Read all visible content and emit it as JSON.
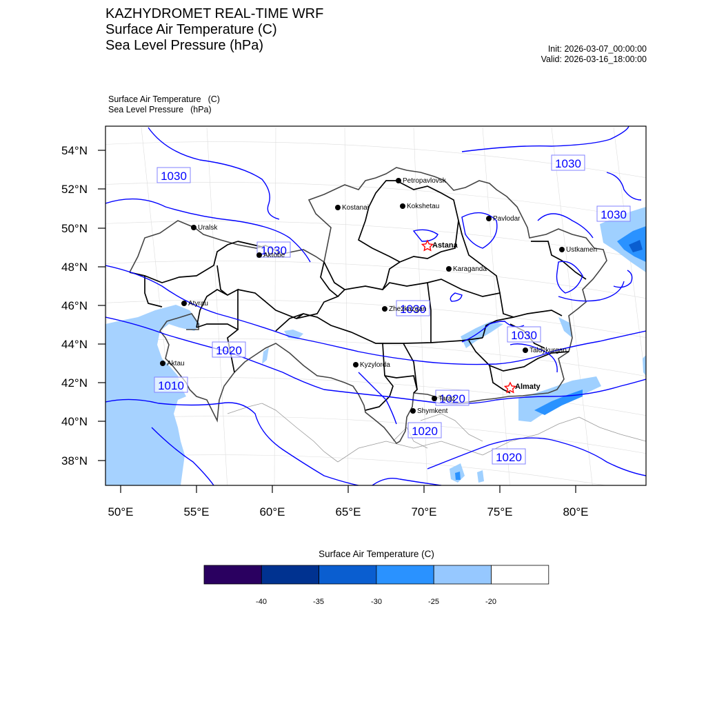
{
  "title": {
    "line1": "KAZHYDROMET REAL-TIME WRF",
    "line2": "Surface Air Temperature  (C)",
    "line3": "Sea Level Pressure  (hPa)"
  },
  "run": {
    "init": "Init: 2026-03-07_00:00:00",
    "valid": "Valid: 2026-03-16_18:00:00"
  },
  "subtitle": {
    "var1": "Surface Air Temperature",
    "unit1": "(C)",
    "var2": "Sea Level Pressure",
    "unit2": "(hPa)"
  },
  "map": {
    "lat_labels": [
      "54°N",
      "52°N",
      "50°N",
      "48°N",
      "46°N",
      "44°N",
      "42°N",
      "40°N",
      "38°N"
    ],
    "lon_labels": [
      "50°E",
      "55°E",
      "60°E",
      "65°E",
      "70°E",
      "75°E",
      "80°E"
    ],
    "cities": [
      {
        "name": "Petropavlovsk"
      },
      {
        "name": "Kostanai"
      },
      {
        "name": "Kokshetau"
      },
      {
        "name": "Pavlodar"
      },
      {
        "name": "Uralsk"
      },
      {
        "name": "Astana",
        "capital": true
      },
      {
        "name": "Aktobe"
      },
      {
        "name": "Ustkamen"
      },
      {
        "name": "Karaganda"
      },
      {
        "name": "Atyrau"
      },
      {
        "name": "Zhezkazgan"
      },
      {
        "name": "Taldykurgan"
      },
      {
        "name": "Kyzylorda"
      },
      {
        "name": "Aktau"
      },
      {
        "name": "Almaty",
        "capital": true
      },
      {
        "name": "Taraz"
      },
      {
        "name": "Shymkent"
      }
    ],
    "isobar_labels": [
      "1030",
      "1030",
      "1030",
      "1030",
      "1030",
      "1030",
      "1020",
      "1010",
      "1020",
      "1020",
      "1020"
    ],
    "colors": {
      "isobar": "#0000ff",
      "land_border": "#000000",
      "sea": "#a6d2ff",
      "frame": "#000000"
    }
  },
  "colorbar": {
    "title": "Surface Air Temperature (C)",
    "labels": [
      "-40",
      "-35",
      "-30",
      "-25",
      "-20"
    ],
    "colors": [
      "#2a0060",
      "#003290",
      "#0a5ed0",
      "#2a92ff",
      "#96c8ff",
      "#ffffff"
    ]
  }
}
